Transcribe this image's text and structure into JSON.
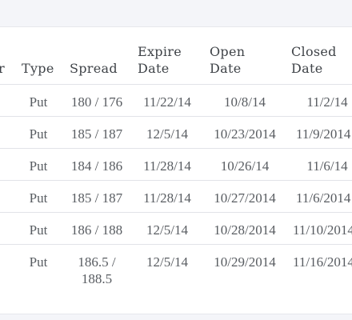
{
  "table": {
    "headers": {
      "partial_prev": "r",
      "type": "Type",
      "spread": "Spread",
      "expire": "Expire\nDate",
      "open": "Open\nDate",
      "closed": "Closed\nDate"
    },
    "rows": [
      {
        "type": "Put",
        "spread": "180 / 176",
        "expire": "11/22/14",
        "open": "10/8/14",
        "closed": "11/2/14"
      },
      {
        "type": "Put",
        "spread": "185 / 187",
        "expire": "12/5/14",
        "open": "10/23/2014",
        "closed": "11/9/2014"
      },
      {
        "type": "Put",
        "spread": "184 / 186",
        "expire": "11/28/14",
        "open": "10/26/14",
        "closed": "11/6/14"
      },
      {
        "type": "Put",
        "spread": "185 / 187",
        "expire": "11/28/14",
        "open": "10/27/2014",
        "closed": "11/6/2014"
      },
      {
        "type": "Put",
        "spread": "186 / 188",
        "expire": "12/5/14",
        "open": "10/28/2014",
        "closed": "11/10/2014"
      },
      {
        "type": "Put",
        "spread": "186.5 /\n188.5",
        "expire": "12/5/14",
        "open": "10/29/2014",
        "closed": "11/16/2014"
      }
    ]
  }
}
